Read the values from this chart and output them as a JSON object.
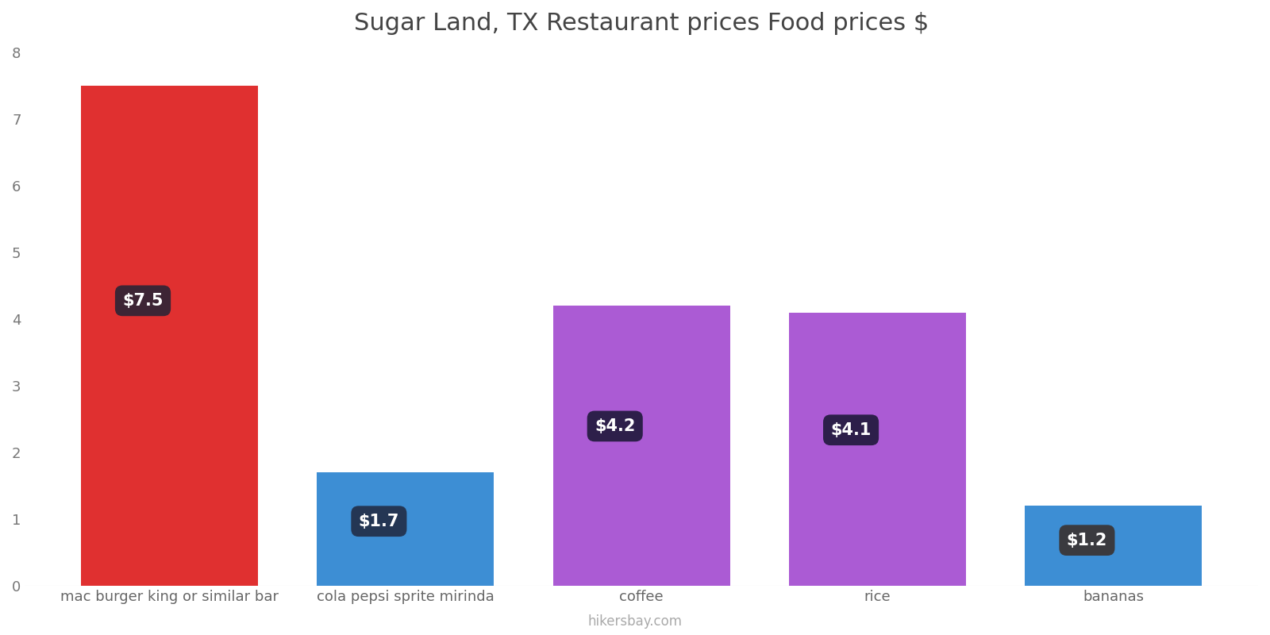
{
  "title": "Sugar Land, TX Restaurant prices Food prices $",
  "categories": [
    "mac burger king or similar bar",
    "cola pepsi sprite mirinda",
    "coffee",
    "rice",
    "bananas"
  ],
  "values": [
    7.5,
    1.7,
    4.2,
    4.1,
    1.2
  ],
  "labels": [
    "$7.5",
    "$1.7",
    "$4.2",
    "$4.1",
    "$1.2"
  ],
  "bar_colors": [
    "#e03030",
    "#3d8ed4",
    "#ab5bd4",
    "#ab5bd4",
    "#3d8ed4"
  ],
  "label_box_colors": [
    "#3d2535",
    "#243654",
    "#2d1f4a",
    "#2d1f4a",
    "#3a3a3f"
  ],
  "ylim": [
    0,
    8
  ],
  "yticks": [
    0,
    1,
    2,
    3,
    4,
    5,
    6,
    7,
    8
  ],
  "background_color": "#ffffff",
  "title_fontsize": 22,
  "axis_label_fontsize": 13,
  "watermark": "hikersbay.com",
  "bar_width": 0.75
}
